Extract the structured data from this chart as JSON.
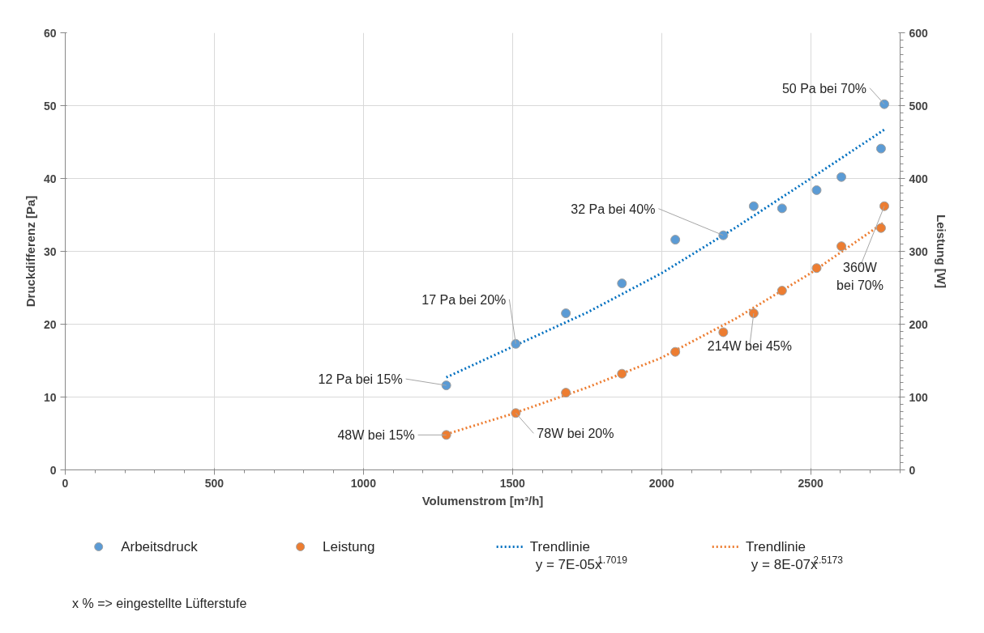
{
  "chart_data": {
    "type": "scatter",
    "xlabel": "Volumenstrom [m³/h]",
    "ylabel": "Druckdifferenz [Pa]",
    "y2label": "Leistung [W]",
    "xlim": [
      0,
      2800
    ],
    "xticks": [
      0,
      500,
      1000,
      1500,
      2000,
      2500
    ],
    "ylim": [
      0,
      60
    ],
    "yticks": [
      0,
      10,
      20,
      30,
      40,
      50,
      60
    ],
    "y2lim": [
      0,
      600
    ],
    "y2ticks": [
      0,
      100,
      200,
      300,
      400,
      500,
      600
    ],
    "grid": true,
    "legend": "bottom",
    "marker": "circle",
    "series": [
      {
        "name": "Arbeitsdruck",
        "color": "#5b9bd5",
        "x": [
          1278,
          1511,
          1679,
          1867,
          2046,
          2207,
          2309,
          2404,
          2520,
          2603,
          2736,
          2747
        ],
        "values": [
          11.6,
          17.3,
          21.5,
          25.6,
          31.6,
          32.2,
          36.2,
          35.9,
          38.4,
          40.2,
          44.1,
          50.2
        ]
      },
      {
        "name": "Leistung",
        "color": "#ed7d31",
        "axis": "y2",
        "x": [
          1278,
          1511,
          1679,
          1867,
          2046,
          2207,
          2309,
          2404,
          2520,
          2603,
          2736,
          2747
        ],
        "values": [
          48,
          78,
          106,
          132,
          162,
          189,
          215,
          246,
          277,
          307,
          332,
          362
        ]
      },
      {
        "name": "Trendlinie\ny = 7E-05x$^{1.7019}$",
        "type": "line",
        "line_style": "dotted",
        "marker": "none",
        "color": "#0070c0",
        "x": [
          1278,
          1500,
          1750,
          2000,
          2250,
          2500,
          2747
        ],
        "values": [
          12.7,
          16.9,
          21.6,
          27.0,
          33.3,
          40.0,
          46.7
        ]
      },
      {
        "name": "Trendlinie\ny = 8E-07x$^{2.5173}$",
        "type": "line",
        "line_style": "dotted",
        "marker": "none",
        "color": "#ed7d31",
        "axis": "y2",
        "x": [
          1278,
          1500,
          1750,
          2000,
          2250,
          2500,
          2747
        ],
        "values": [
          49,
          77,
          113,
          154,
          208,
          270,
          340
        ]
      }
    ],
    "annotations": [
      {
        "text": "12 Pa bei 15%",
        "x": 1278,
        "y": 11.6
      },
      {
        "text": "17 Pa bei 20%",
        "x": 1511,
        "y": 17.3
      },
      {
        "text": "32 Pa bei 40%",
        "x": 2207,
        "y": 32.2
      },
      {
        "text": "50 Pa bei 70%",
        "x": 2747,
        "y": 50.2
      },
      {
        "text": "48W bei 15%",
        "x": 1278,
        "y": 4.8
      },
      {
        "text": "78W bei 20%",
        "x": 1511,
        "y": 7.8
      },
      {
        "text": "214W bei 45%",
        "x": 2309,
        "y": 21.5
      },
      {
        "text": "360W\nbei 70%",
        "x": 2747,
        "y": 36.2
      },
      "x % => eingestellte Lüfterstufe"
    ]
  }
}
